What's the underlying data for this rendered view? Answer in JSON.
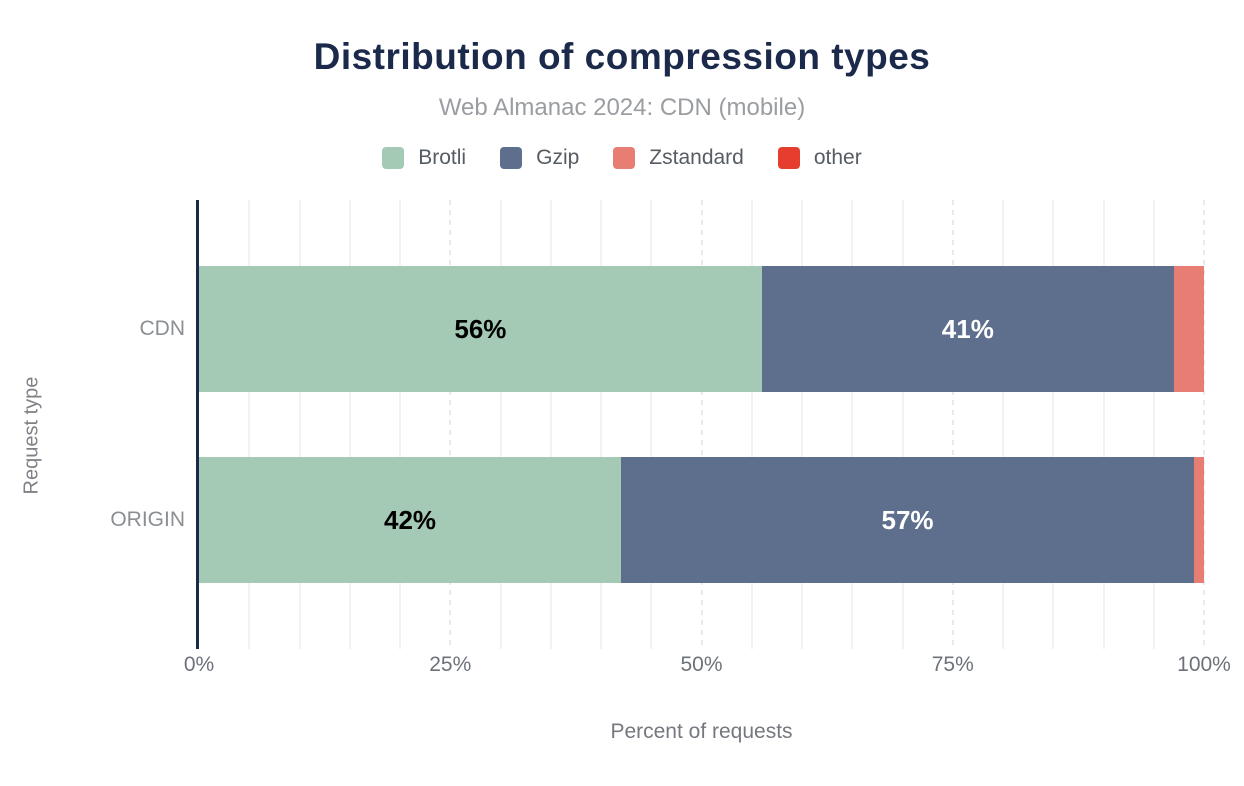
{
  "chart_data": {
    "type": "bar",
    "stacked": true,
    "orientation": "horizontal",
    "title": "Distribution of compression types",
    "subtitle": "Web Almanac 2024: CDN (mobile)",
    "categories": [
      "CDN",
      "ORIGIN"
    ],
    "series": [
      {
        "name": "Brotli",
        "color": "#a4c9b5",
        "label_color": "#000000",
        "values": [
          56,
          42
        ]
      },
      {
        "name": "Gzip",
        "color": "#5e6f8d",
        "label_color": "#ffffff",
        "values": [
          41,
          57
        ]
      },
      {
        "name": "Zstandard",
        "color": "#e87d74",
        "label_color": "#ffffff",
        "values": [
          3,
          1
        ]
      },
      {
        "name": "other",
        "color": "#e53e2e",
        "label_color": "#ffffff",
        "values": [
          0,
          0
        ]
      }
    ],
    "data_label_format": "{value}%",
    "data_label_min_value": 5,
    "xlabel": "Percent of requests",
    "ylabel": "Request type",
    "xlim": [
      0,
      100
    ],
    "x_ticks": [
      {
        "value": 0,
        "label": "0%"
      },
      {
        "value": 25,
        "label": "25%"
      },
      {
        "value": 50,
        "label": "50%"
      },
      {
        "value": 75,
        "label": "75%"
      },
      {
        "value": 100,
        "label": "100%"
      }
    ],
    "gridlines": {
      "minor_step": 5,
      "major_step": 25,
      "shown": true
    },
    "legend_position": "top",
    "colors": {
      "title": "#1b2a4a",
      "subtitle": "#9a9da1",
      "axis_line": "#1b2a4a",
      "gridline_minor": "#f2f2f2",
      "gridline_major": "#e9e9e9"
    }
  }
}
